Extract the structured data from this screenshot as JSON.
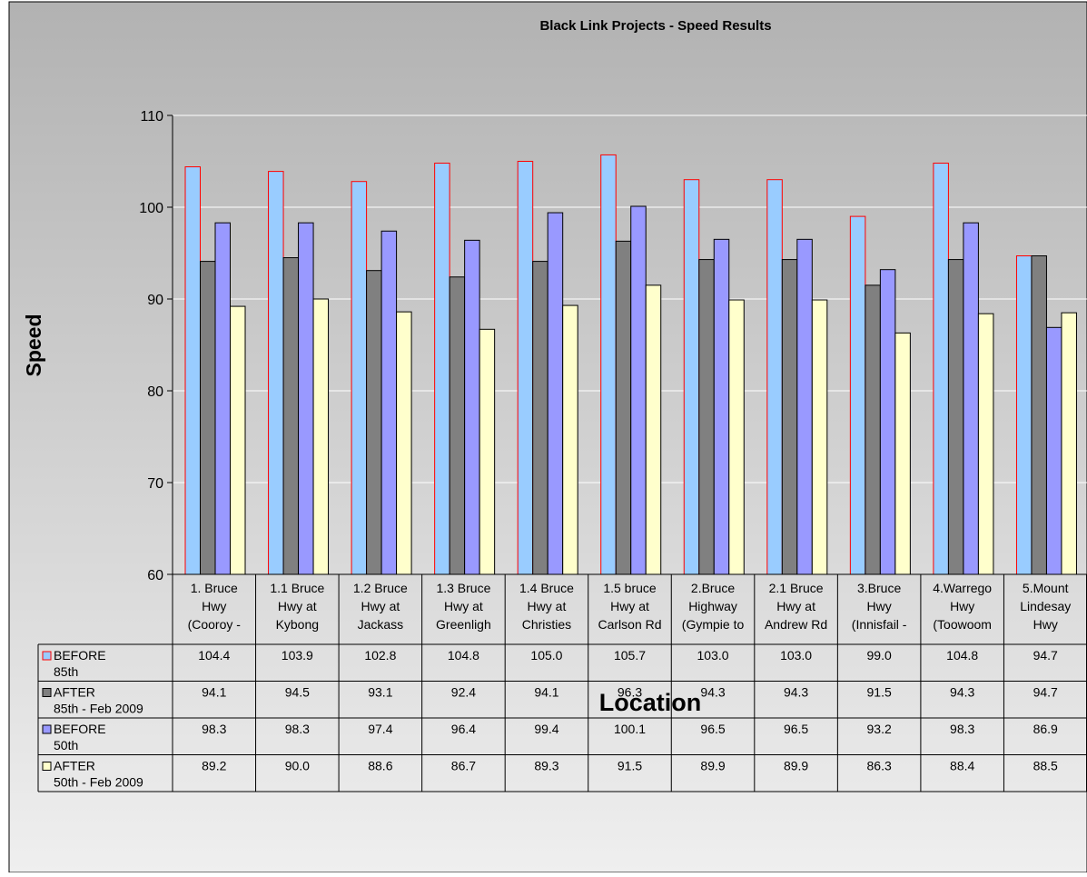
{
  "chart_data": {
    "type": "bar",
    "title": "Black Link Projects - Speed Results",
    "xlabel": "Location",
    "ylabel": "Speed",
    "ylim": [
      60,
      110
    ],
    "yticks": [
      60,
      70,
      80,
      90,
      100,
      110
    ],
    "grid": true,
    "legend_placement": "data-table-left",
    "categories": [
      [
        "1. Bruce",
        "Hwy",
        "(Cooroy -"
      ],
      [
        "1.1 Bruce",
        "Hwy at",
        "Kybong"
      ],
      [
        "1.2 Bruce",
        "Hwy at",
        "Jackass"
      ],
      [
        "1.3 Bruce",
        "Hwy at",
        "Greenligh"
      ],
      [
        "1.4 Bruce",
        "Hwy at",
        "Christies"
      ],
      [
        "1.5 bruce",
        "Hwy at",
        "Carlson Rd"
      ],
      [
        "2.Bruce",
        "Highway",
        "(Gympie to"
      ],
      [
        "2.1 Bruce",
        "Hwy at",
        "Andrew Rd"
      ],
      [
        "3.Bruce",
        "Hwy",
        "(Innisfail -"
      ],
      [
        "4.Warrego",
        "Hwy",
        "(Toowoom"
      ],
      [
        "5.Mount",
        "Lindesay",
        "Hwy"
      ]
    ],
    "series": [
      {
        "name": [
          "BEFORE",
          "85th"
        ],
        "fill": "#99ccff",
        "stroke": "#ff0000",
        "values": [
          104.4,
          103.9,
          102.8,
          104.8,
          105.0,
          105.7,
          103.0,
          103.0,
          99.0,
          104.8,
          94.7
        ],
        "labels": [
          "104.4",
          "103.9",
          "102.8",
          "104.8",
          "105.0",
          "105.7",
          "103.0",
          "103.0",
          "99.0",
          "104.8",
          "94.7"
        ]
      },
      {
        "name": [
          "AFTER",
          "85th - Feb 2009"
        ],
        "fill": "#808080",
        "stroke": "#000000",
        "values": [
          94.1,
          94.5,
          93.1,
          92.4,
          94.1,
          96.3,
          94.3,
          94.3,
          91.5,
          94.3,
          94.7
        ],
        "labels": [
          "94.1",
          "94.5",
          "93.1",
          "92.4",
          "94.1",
          "96.3",
          "94.3",
          "94.3",
          "91.5",
          "94.3",
          "94.7"
        ]
      },
      {
        "name": [
          "BEFORE",
          "50th"
        ],
        "fill": "#9999ff",
        "stroke": "#000000",
        "values": [
          98.3,
          98.3,
          97.4,
          96.4,
          99.4,
          100.1,
          96.5,
          96.5,
          93.2,
          98.3,
          86.9
        ],
        "labels": [
          "98.3",
          "98.3",
          "97.4",
          "96.4",
          "99.4",
          "100.1",
          "96.5",
          "96.5",
          "93.2",
          "98.3",
          "86.9"
        ]
      },
      {
        "name": [
          "AFTER",
          "50th - Feb 2009"
        ],
        "fill": "#ffffcc",
        "stroke": "#000000",
        "values": [
          89.2,
          90.0,
          88.6,
          86.7,
          89.3,
          91.5,
          89.9,
          89.9,
          86.3,
          88.4,
          88.5
        ],
        "labels": [
          "89.2",
          "90.0",
          "88.6",
          "86.7",
          "89.3",
          "91.5",
          "89.9",
          "89.9",
          "86.3",
          "88.4",
          "88.5"
        ]
      }
    ]
  }
}
